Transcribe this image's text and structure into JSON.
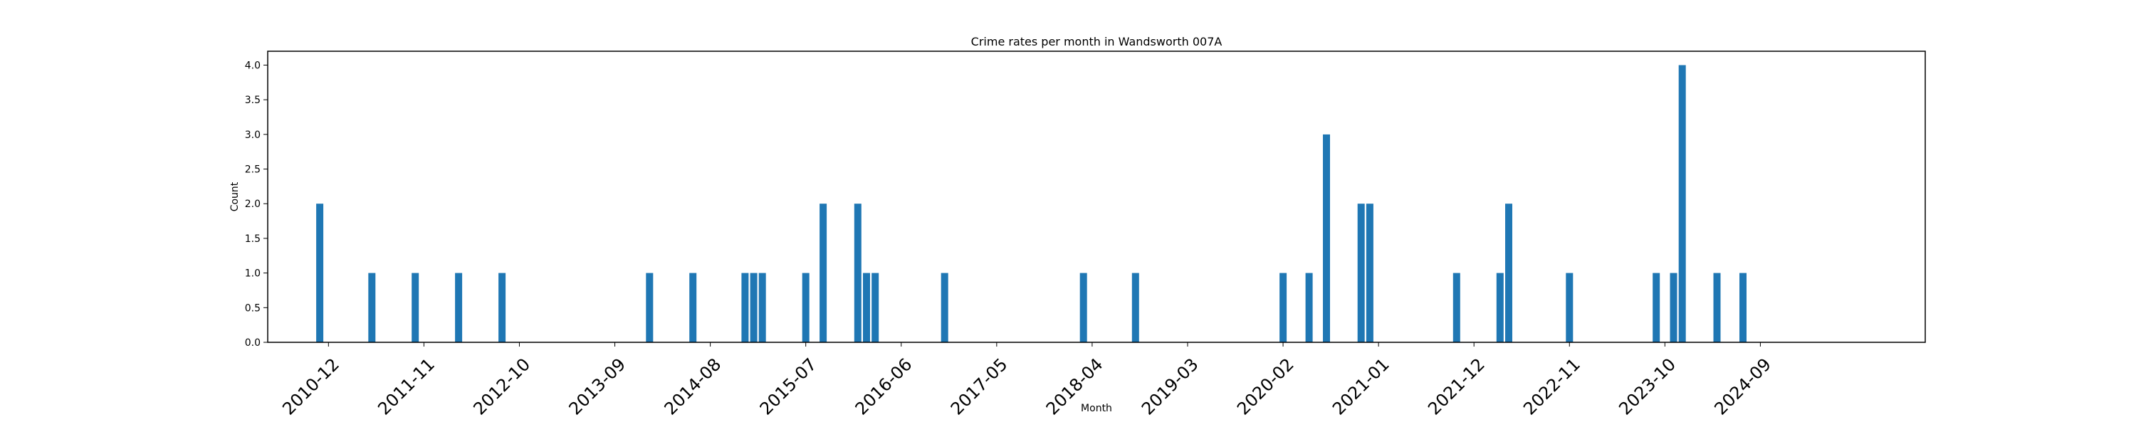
{
  "chart_data": {
    "type": "bar",
    "title": "Crime rates per month in Wandsworth 007A",
    "xlabel": "Month",
    "ylabel": "Count",
    "ylim": [
      0,
      4.2
    ],
    "yticks": [
      "0.0",
      "0.5",
      "1.0",
      "1.5",
      "2.0",
      "2.5",
      "3.0",
      "3.5",
      "4.0"
    ],
    "xlim": [
      "2010-05",
      "2026-04"
    ],
    "xticks": [
      "2010-12",
      "2011-11",
      "2012-10",
      "2013-09",
      "2014-08",
      "2015-07",
      "2016-06",
      "2017-05",
      "2018-04",
      "2019-03",
      "2020-02",
      "2021-01",
      "2021-12",
      "2022-11",
      "2023-10",
      "2024-09"
    ],
    "bar_color": "#1f77b4",
    "grid": false,
    "data": [
      {
        "x": "2010-11",
        "y": 2
      },
      {
        "x": "2011-05",
        "y": 1
      },
      {
        "x": "2011-10",
        "y": 1
      },
      {
        "x": "2012-03",
        "y": 1
      },
      {
        "x": "2012-08",
        "y": 1
      },
      {
        "x": "2014-01",
        "y": 1
      },
      {
        "x": "2014-06",
        "y": 1
      },
      {
        "x": "2014-12",
        "y": 1
      },
      {
        "x": "2015-01",
        "y": 1
      },
      {
        "x": "2015-02",
        "y": 1
      },
      {
        "x": "2015-07",
        "y": 1
      },
      {
        "x": "2015-09",
        "y": 2
      },
      {
        "x": "2016-01",
        "y": 2
      },
      {
        "x": "2016-02",
        "y": 1
      },
      {
        "x": "2016-03",
        "y": 1
      },
      {
        "x": "2016-11",
        "y": 1
      },
      {
        "x": "2018-03",
        "y": 1
      },
      {
        "x": "2018-09",
        "y": 1
      },
      {
        "x": "2020-02",
        "y": 1
      },
      {
        "x": "2020-05",
        "y": 1
      },
      {
        "x": "2020-07",
        "y": 3
      },
      {
        "x": "2020-11",
        "y": 2
      },
      {
        "x": "2020-12",
        "y": 2
      },
      {
        "x": "2021-10",
        "y": 1
      },
      {
        "x": "2022-03",
        "y": 1
      },
      {
        "x": "2022-04",
        "y": 2
      },
      {
        "x": "2022-11",
        "y": 1
      },
      {
        "x": "2023-09",
        "y": 1
      },
      {
        "x": "2023-11",
        "y": 1
      },
      {
        "x": "2023-12",
        "y": 4
      },
      {
        "x": "2024-04",
        "y": 1
      },
      {
        "x": "2024-07",
        "y": 1
      }
    ]
  }
}
